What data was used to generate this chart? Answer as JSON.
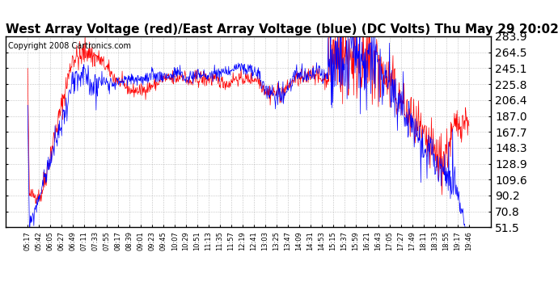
{
  "title": "West Array Voltage (red)/East Array Voltage (blue) (DC Volts) Thu May 29 20:02",
  "copyright": "Copyright 2008 Cartronics.com",
  "ylabel_right_values": [
    283.9,
    264.5,
    245.1,
    225.8,
    206.4,
    187.0,
    167.7,
    148.3,
    128.9,
    109.6,
    90.2,
    70.8,
    51.5
  ],
  "ylim": [
    51.5,
    283.9
  ],
  "x_labels": [
    "05:17",
    "05:42",
    "06:05",
    "06:27",
    "06:49",
    "07:11",
    "07:33",
    "07:55",
    "08:17",
    "08:39",
    "09:01",
    "09:23",
    "09:45",
    "10:07",
    "10:29",
    "10:51",
    "11:13",
    "11:35",
    "11:57",
    "12:19",
    "12:41",
    "13:03",
    "13:25",
    "13:47",
    "14:09",
    "14:31",
    "14:53",
    "15:15",
    "15:37",
    "15:59",
    "16:21",
    "16:43",
    "17:05",
    "17:27",
    "17:49",
    "18:11",
    "18:33",
    "18:55",
    "19:17",
    "19:46"
  ],
  "background_color": "#ffffff",
  "plot_bg_color": "#ffffff",
  "grid_color": "#aaaaaa",
  "title_fontsize": 11,
  "copyright_fontsize": 7,
  "red_color": "#ff0000",
  "blue_color": "#0000ff",
  "figwidth": 6.9,
  "figheight": 3.75,
  "dpi": 100
}
